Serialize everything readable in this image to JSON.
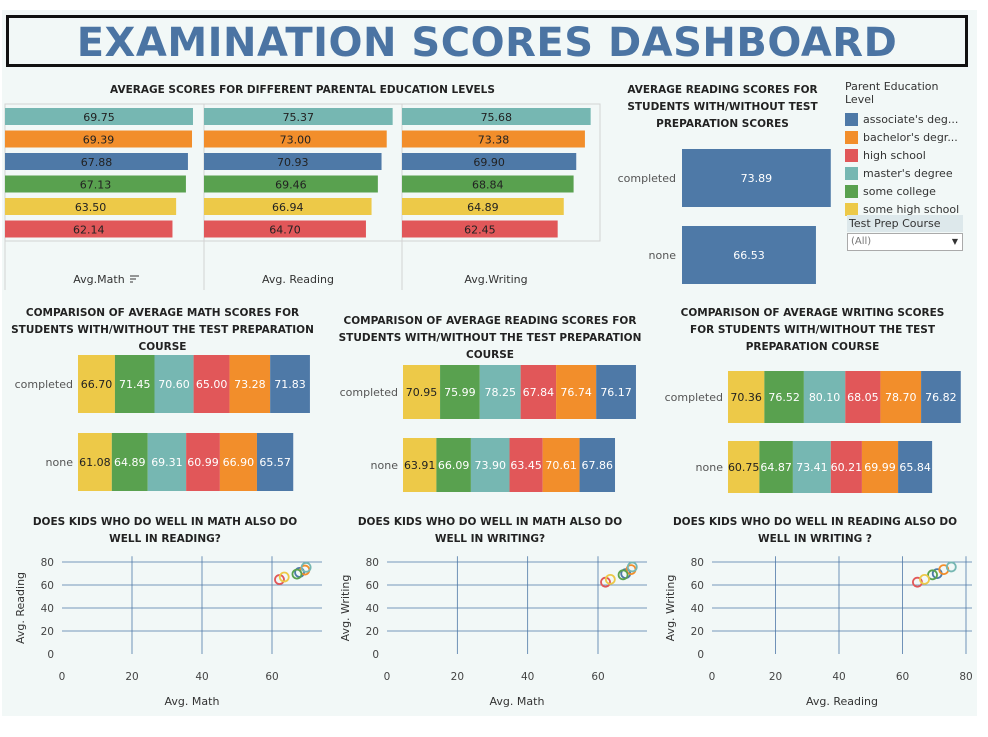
{
  "header": {
    "title": "EXAMINATION SCORES DASHBOARD"
  },
  "colors": {
    "associates": "#4e79a7",
    "bachelors": "#f28e2b",
    "high_school": "#e15759",
    "masters": "#76b7b2",
    "some_college": "#59a14f",
    "some_high_school": "#edc948"
  },
  "legend": {
    "title": "Parent Education Level",
    "items": [
      {
        "label": "associate's deg...",
        "color": "#4e79a7"
      },
      {
        "label": "bachelor's degr...",
        "color": "#f28e2b"
      },
      {
        "label": "high school",
        "color": "#e15759"
      },
      {
        "label": "master's degree",
        "color": "#76b7b2"
      },
      {
        "label": "some college",
        "color": "#59a14f"
      },
      {
        "label": "some high school",
        "color": "#edc948"
      }
    ]
  },
  "filter": {
    "title": "Test Prep Course",
    "value": "(All)"
  },
  "chart_data": [
    {
      "id": "parental",
      "type": "bar",
      "title": "AVERAGE SCORES FOR DIFFERENT PARENTAL EDUCATION LEVELS",
      "orientation": "horizontal",
      "sort_icon": "sort-icon",
      "panels": [
        {
          "label": "Avg.Math",
          "values": [
            69.75,
            69.39,
            67.88,
            67.13,
            63.5,
            62.14
          ]
        },
        {
          "label": "Avg. Reading",
          "values": [
            75.37,
            73.0,
            70.93,
            69.46,
            66.94,
            64.7
          ]
        },
        {
          "label": "Avg.Writing",
          "values": [
            75.68,
            73.38,
            69.9,
            68.84,
            64.89,
            62.45
          ]
        }
      ],
      "colors": [
        "#76b7b2",
        "#f28e2b",
        "#4e79a7",
        "#59a14f",
        "#edc948",
        "#e15759"
      ]
    },
    {
      "id": "reading_prep",
      "type": "bar",
      "title": "AVERAGE READING SCORES FOR STUDENTS WITH/WITHOUT TEST PREPARATION SCORES",
      "categories": [
        "completed",
        "none"
      ],
      "values": [
        73.89,
        66.53
      ],
      "color": "#4e79a7"
    },
    {
      "id": "math_prep",
      "type": "bar",
      "stacked": true,
      "title": "COMPARISON OF AVERAGE MATH SCORES FOR STUDENTS WITH/WITHOUT THE TEST PREPARATION COURSE",
      "categories": [
        "completed",
        "none"
      ],
      "segment_colors": [
        "#edc948",
        "#59a14f",
        "#76b7b2",
        "#e15759",
        "#f28e2b",
        "#4e79a7"
      ],
      "rows": [
        [
          66.7,
          71.45,
          70.6,
          65.0,
          73.28,
          71.83
        ],
        [
          61.08,
          64.89,
          69.31,
          60.99,
          66.9,
          65.57
        ]
      ]
    },
    {
      "id": "reading_prep_stack",
      "type": "bar",
      "stacked": true,
      "title": "COMPARISON OF AVERAGE READING SCORES FOR STUDENTS  WITH/WITHOUT THE TEST PREPARATION COURSE",
      "categories": [
        "completed",
        "none"
      ],
      "segment_colors": [
        "#edc948",
        "#59a14f",
        "#76b7b2",
        "#e15759",
        "#f28e2b",
        "#4e79a7"
      ],
      "rows": [
        [
          70.95,
          75.99,
          78.25,
          67.84,
          76.74,
          76.17
        ],
        [
          63.91,
          66.09,
          73.9,
          63.45,
          70.61,
          67.86
        ]
      ]
    },
    {
      "id": "writing_prep",
      "type": "bar",
      "stacked": true,
      "title": "COMPARISON OF AVERAGE  WRITING SCORES FOR STUDENTS  WITH/WITHOUT THE TEST PREPARATION COURSE",
      "categories": [
        "completed",
        "none"
      ],
      "segment_colors": [
        "#edc948",
        "#59a14f",
        "#76b7b2",
        "#e15759",
        "#f28e2b",
        "#4e79a7"
      ],
      "rows": [
        [
          70.36,
          76.52,
          80.1,
          68.05,
          78.7,
          76.82
        ],
        [
          60.75,
          64.87,
          73.41,
          60.21,
          69.99,
          65.84
        ]
      ]
    },
    {
      "id": "scatter_math_reading",
      "type": "scatter",
      "title": "DOES KIDS WHO DO WELL IN MATH ALSO DO WELL IN READING?",
      "xlabel": "Avg. Math",
      "ylabel": "Avg. Reading",
      "xticks": [
        0,
        20,
        40,
        60
      ],
      "yticks": [
        0,
        20,
        40,
        60,
        80
      ],
      "xlim": [
        0,
        75
      ],
      "ylim": [
        0,
        85
      ],
      "points": [
        {
          "x": 67.88,
          "y": 70.93,
          "color": "#4e79a7"
        },
        {
          "x": 69.39,
          "y": 73.0,
          "color": "#f28e2b"
        },
        {
          "x": 62.14,
          "y": 64.7,
          "color": "#e15759"
        },
        {
          "x": 69.75,
          "y": 75.37,
          "color": "#76b7b2"
        },
        {
          "x": 67.13,
          "y": 69.46,
          "color": "#59a14f"
        },
        {
          "x": 63.5,
          "y": 66.94,
          "color": "#edc948"
        }
      ]
    },
    {
      "id": "scatter_math_writing",
      "type": "scatter",
      "title": "DOES KIDS WHO DO WELL IN MATH ALSO DO WELL IN WRITING?",
      "xlabel": "Avg. Math",
      "ylabel": "Avg. Writing",
      "xticks": [
        0,
        20,
        40,
        60
      ],
      "yticks": [
        0,
        20,
        40,
        60,
        80
      ],
      "xlim": [
        0,
        75
      ],
      "ylim": [
        0,
        85
      ],
      "points": [
        {
          "x": 67.88,
          "y": 69.9,
          "color": "#4e79a7"
        },
        {
          "x": 69.39,
          "y": 73.38,
          "color": "#f28e2b"
        },
        {
          "x": 62.14,
          "y": 62.45,
          "color": "#e15759"
        },
        {
          "x": 69.75,
          "y": 75.68,
          "color": "#76b7b2"
        },
        {
          "x": 67.13,
          "y": 68.84,
          "color": "#59a14f"
        },
        {
          "x": 63.5,
          "y": 64.89,
          "color": "#edc948"
        }
      ]
    },
    {
      "id": "scatter_reading_writing",
      "type": "scatter",
      "title": "DOES KIDS WHO DO WELL IN READING ALSO DO WELL IN WRITING ?",
      "xlabel": "Avg. Reading",
      "ylabel": "Avg. Writing",
      "xticks": [
        0,
        20,
        40,
        60,
        80
      ],
      "yticks": [
        0,
        20,
        40,
        60,
        80
      ],
      "xlim": [
        0,
        80
      ],
      "ylim": [
        0,
        85
      ],
      "points": [
        {
          "x": 70.93,
          "y": 69.9,
          "color": "#4e79a7"
        },
        {
          "x": 73.0,
          "y": 73.38,
          "color": "#f28e2b"
        },
        {
          "x": 64.7,
          "y": 62.45,
          "color": "#e15759"
        },
        {
          "x": 75.37,
          "y": 75.68,
          "color": "#76b7b2"
        },
        {
          "x": 69.46,
          "y": 68.84,
          "color": "#59a14f"
        },
        {
          "x": 66.94,
          "y": 64.89,
          "color": "#edc948"
        }
      ]
    }
  ]
}
